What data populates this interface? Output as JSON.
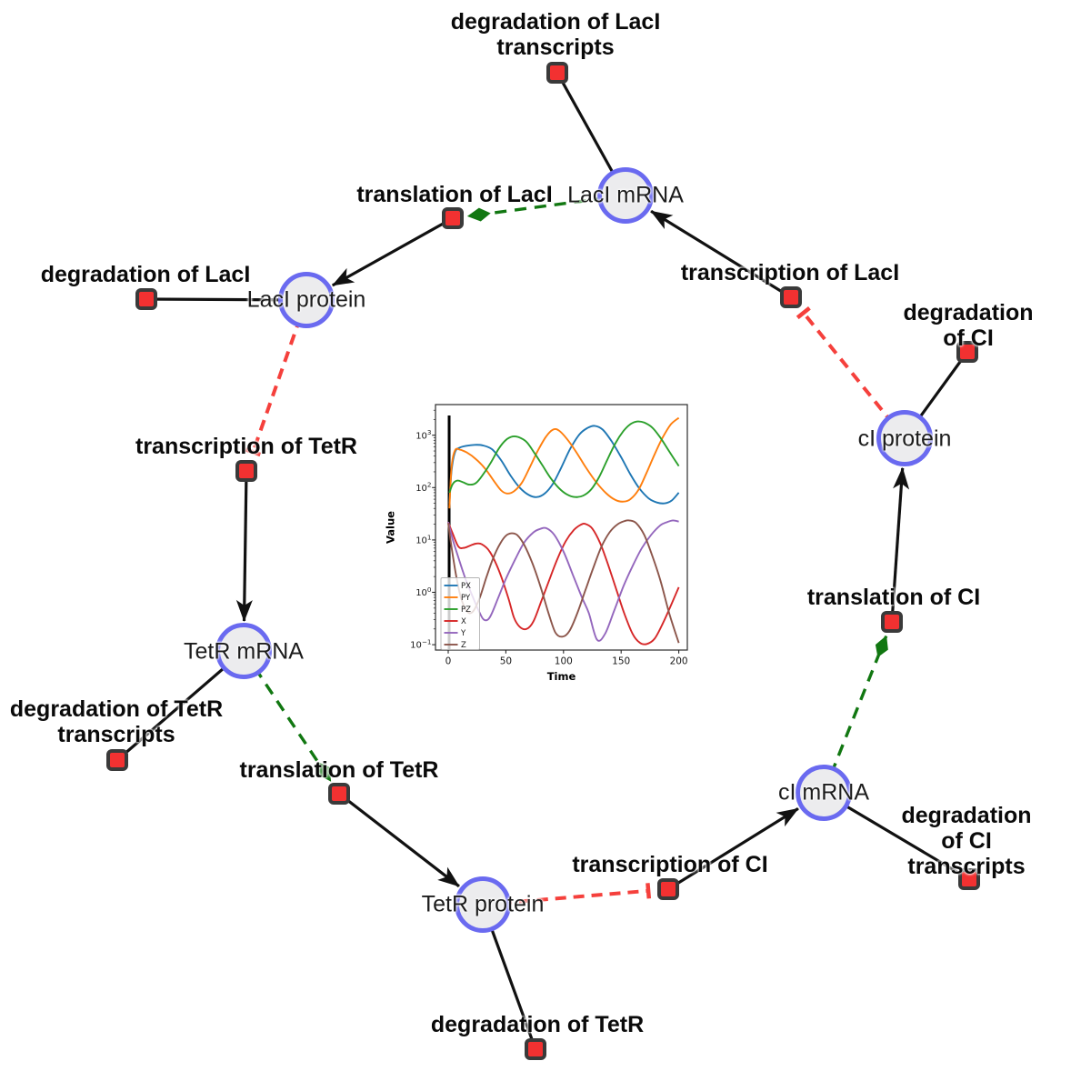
{
  "colors": {
    "species-fill": "#ececee",
    "species-border": "#6a6af0",
    "reaction-fill": "#f23131",
    "reaction-border": "#3a3a3a",
    "edge-black": "#111111",
    "edge-green": "#117711",
    "edge-red": "#f5403c"
  },
  "diagram": {
    "species": [
      {
        "id": "laci-mrna",
        "label": "LacI mRNA"
      },
      {
        "id": "laci-protein",
        "label": "LacI protein"
      },
      {
        "id": "ci-protein",
        "label": "cI protein"
      },
      {
        "id": "tetr-mrna",
        "label": "TetR mRNA"
      },
      {
        "id": "tetr-protein",
        "label": "TetR protein"
      },
      {
        "id": "ci-mrna",
        "label": "cI mRNA"
      }
    ],
    "reactions": [
      {
        "id": "degradation-laci-transcripts",
        "label": "degradation of LacI\ntranscripts"
      },
      {
        "id": "translation-laci",
        "label": "translation of LacI"
      },
      {
        "id": "transcription-laci",
        "label": "transcription of LacI"
      },
      {
        "id": "degradation-laci",
        "label": "degradation of LacI"
      },
      {
        "id": "degradation-ci",
        "label": "degradation of CI"
      },
      {
        "id": "transcription-tetr",
        "label": "transcription of TetR"
      },
      {
        "id": "degradation-tetr-transcripts",
        "label": "degradation of TetR\ntranscripts"
      },
      {
        "id": "translation-tetr",
        "label": "translation of TetR"
      },
      {
        "id": "transcription-ci",
        "label": "transcription of CI"
      },
      {
        "id": "degradation-tetr",
        "label": "degradation of TetR"
      },
      {
        "id": "translation-ci",
        "label": "translation of CI"
      },
      {
        "id": "degradation-ci-transcripts",
        "label": "degradation of CI\ntranscripts"
      }
    ],
    "edges": [
      {
        "from": "laci-mrna",
        "to": "degradation-laci-transcripts",
        "type": "reactant"
      },
      {
        "from": "laci-mrna",
        "to": "translation-laci",
        "type": "modifier"
      },
      {
        "from": "transcription-laci",
        "to": "laci-mrna",
        "type": "product"
      },
      {
        "from": "translation-laci",
        "to": "laci-protein",
        "type": "product"
      },
      {
        "from": "laci-protein",
        "to": "degradation-laci",
        "type": "reactant"
      },
      {
        "from": "laci-protein",
        "to": "transcription-tetr",
        "type": "inhibitor"
      },
      {
        "from": "transcription-tetr",
        "to": "tetr-mrna",
        "type": "product"
      },
      {
        "from": "tetr-mrna",
        "to": "degradation-tetr-transcripts",
        "type": "reactant"
      },
      {
        "from": "tetr-mrna",
        "to": "translation-tetr",
        "type": "modifier"
      },
      {
        "from": "translation-tetr",
        "to": "tetr-protein",
        "type": "product"
      },
      {
        "from": "tetr-protein",
        "to": "degradation-tetr",
        "type": "reactant"
      },
      {
        "from": "tetr-protein",
        "to": "transcription-ci",
        "type": "inhibitor"
      },
      {
        "from": "transcription-ci",
        "to": "ci-mrna",
        "type": "product"
      },
      {
        "from": "ci-mrna",
        "to": "degradation-ci-transcripts",
        "type": "reactant"
      },
      {
        "from": "ci-mrna",
        "to": "translation-ci",
        "type": "modifier"
      },
      {
        "from": "translation-ci",
        "to": "ci-protein",
        "type": "product"
      },
      {
        "from": "ci-protein",
        "to": "degradation-ci",
        "type": "reactant"
      },
      {
        "from": "ci-protein",
        "to": "transcription-laci",
        "type": "inhibitor"
      }
    ]
  },
  "chart_data": {
    "type": "line",
    "xlabel": "Time",
    "ylabel": "Value",
    "y_scale": "log",
    "x_ticks": [
      0,
      50,
      100,
      150,
      200
    ],
    "y_tick_exponents": [
      3,
      2,
      1,
      0,
      -1
    ],
    "x_range": [
      -11,
      207
    ],
    "y_log_range": [
      -1.13,
      3.58
    ],
    "marker_line_x": 0.8,
    "legend_position": "lower left",
    "legend": [
      "PX",
      "PY",
      "PZ",
      "X",
      "Y",
      "Z"
    ],
    "series": [
      {
        "name": "PX",
        "color": "#1f77b4",
        "points": [
          [
            1,
            50
          ],
          [
            3,
            220
          ],
          [
            6,
            480
          ],
          [
            10,
            580
          ],
          [
            16,
            630
          ],
          [
            23,
            655
          ],
          [
            30,
            640
          ],
          [
            38,
            540
          ],
          [
            46,
            330
          ],
          [
            54,
            170
          ],
          [
            62,
            100
          ],
          [
            70,
            72
          ],
          [
            77,
            66
          ],
          [
            84,
            78
          ],
          [
            91,
            120
          ],
          [
            98,
            240
          ],
          [
            106,
            560
          ],
          [
            114,
            1050
          ],
          [
            121,
            1380
          ],
          [
            127,
            1510
          ],
          [
            134,
            1280
          ],
          [
            142,
            750
          ],
          [
            150,
            380
          ],
          [
            158,
            180
          ],
          [
            166,
            95
          ],
          [
            174,
            62
          ],
          [
            181,
            52
          ],
          [
            188,
            50
          ],
          [
            194,
            57
          ],
          [
            200,
            80
          ]
        ]
      },
      {
        "name": "PY",
        "color": "#ff7f0e",
        "points": [
          [
            1,
            40
          ],
          [
            3,
            260
          ],
          [
            6,
            520
          ],
          [
            10,
            530
          ],
          [
            16,
            470
          ],
          [
            24,
            350
          ],
          [
            32,
            230
          ],
          [
            40,
            130
          ],
          [
            46,
            88
          ],
          [
            51,
            77
          ],
          [
            57,
            85
          ],
          [
            64,
            125
          ],
          [
            71,
            250
          ],
          [
            78,
            520
          ],
          [
            85,
            950
          ],
          [
            91,
            1280
          ],
          [
            96,
            1230
          ],
          [
            103,
            850
          ],
          [
            111,
            480
          ],
          [
            119,
            250
          ],
          [
            128,
            130
          ],
          [
            137,
            78
          ],
          [
            145,
            58
          ],
          [
            152,
            54
          ],
          [
            158,
            60
          ],
          [
            165,
            90
          ],
          [
            172,
            190
          ],
          [
            179,
            430
          ],
          [
            186,
            900
          ],
          [
            193,
            1600
          ],
          [
            200,
            2150
          ]
        ]
      },
      {
        "name": "PZ",
        "color": "#2ca02c",
        "points": [
          [
            1,
            80
          ],
          [
            4,
            118
          ],
          [
            8,
            136
          ],
          [
            13,
            126
          ],
          [
            18,
            114
          ],
          [
            24,
            122
          ],
          [
            30,
            175
          ],
          [
            37,
            300
          ],
          [
            44,
            560
          ],
          [
            50,
            810
          ],
          [
            56,
            945
          ],
          [
            61,
            920
          ],
          [
            68,
            740
          ],
          [
            75,
            450
          ],
          [
            82,
            260
          ],
          [
            89,
            150
          ],
          [
            96,
            98
          ],
          [
            103,
            74
          ],
          [
            110,
            66
          ],
          [
            117,
            70
          ],
          [
            124,
            92
          ],
          [
            131,
            160
          ],
          [
            138,
            340
          ],
          [
            145,
            700
          ],
          [
            152,
            1200
          ],
          [
            158,
            1620
          ],
          [
            164,
            1830
          ],
          [
            170,
            1740
          ],
          [
            177,
            1400
          ],
          [
            184,
            900
          ],
          [
            192,
            480
          ],
          [
            200,
            258
          ]
        ]
      },
      {
        "name": "X",
        "color": "#d62728",
        "points": [
          [
            0,
            22
          ],
          [
            4,
            13
          ],
          [
            9,
            7.4
          ],
          [
            14,
            7.1
          ],
          [
            19,
            7.8
          ],
          [
            24,
            8.5
          ],
          [
            29,
            8.3
          ],
          [
            36,
            6
          ],
          [
            44,
            2.6
          ],
          [
            52,
            0.8
          ],
          [
            57,
            0.33
          ],
          [
            62,
            0.22
          ],
          [
            68,
            0.2
          ],
          [
            74,
            0.28
          ],
          [
            81,
            0.7
          ],
          [
            88,
            1.8
          ],
          [
            95,
            4.5
          ],
          [
            102,
            9.5
          ],
          [
            109,
            15.5
          ],
          [
            115,
            19.5
          ],
          [
            119,
            20.2
          ],
          [
            125,
            16.5
          ],
          [
            132,
            8.5
          ],
          [
            139,
            3.2
          ],
          [
            146,
            1.1
          ],
          [
            153,
            0.38
          ],
          [
            160,
            0.16
          ],
          [
            166,
            0.11
          ],
          [
            172,
            0.103
          ],
          [
            179,
            0.13
          ],
          [
            186,
            0.25
          ],
          [
            193,
            0.55
          ],
          [
            200,
            1.25
          ]
        ]
      },
      {
        "name": "Y",
        "color": "#9467bd",
        "points": [
          [
            0,
            22
          ],
          [
            4,
            10
          ],
          [
            9,
            4.5
          ],
          [
            15,
            1.8
          ],
          [
            22,
            0.75
          ],
          [
            27,
            0.42
          ],
          [
            31,
            0.3
          ],
          [
            36,
            0.33
          ],
          [
            43,
            0.75
          ],
          [
            50,
            1.8
          ],
          [
            58,
            4.2
          ],
          [
            66,
            9
          ],
          [
            74,
            14
          ],
          [
            80,
            16.3
          ],
          [
            85,
            16.8
          ],
          [
            92,
            12.5
          ],
          [
            100,
            6
          ],
          [
            108,
            2.2
          ],
          [
            116,
            0.8
          ],
          [
            122,
            0.4
          ],
          [
            129,
            0.125
          ],
          [
            136,
            0.16
          ],
          [
            144,
            0.45
          ],
          [
            152,
            1.3
          ],
          [
            160,
            3.2
          ],
          [
            168,
            7
          ],
          [
            176,
            12.5
          ],
          [
            184,
            19
          ],
          [
            190,
            22
          ],
          [
            195,
            23.6
          ],
          [
            200,
            22.4
          ]
        ]
      },
      {
        "name": "Z",
        "color": "#8c564b",
        "points": [
          [
            0,
            21
          ],
          [
            3,
            7
          ],
          [
            7,
            2
          ],
          [
            11,
            0.8
          ],
          [
            16,
            0.44
          ],
          [
            21,
            0.42
          ],
          [
            27,
            0.75
          ],
          [
            33,
            1.9
          ],
          [
            39,
            4.5
          ],
          [
            45,
            8.5
          ],
          [
            50,
            12
          ],
          [
            55,
            13.4
          ],
          [
            60,
            12.3
          ],
          [
            66,
            8
          ],
          [
            73,
            3.6
          ],
          [
            80,
            1.3
          ],
          [
            87,
            0.4
          ],
          [
            93,
            0.17
          ],
          [
            99,
            0.142
          ],
          [
            105,
            0.18
          ],
          [
            112,
            0.4
          ],
          [
            119,
            1.1
          ],
          [
            126,
            3
          ],
          [
            133,
            7.5
          ],
          [
            140,
            14
          ],
          [
            147,
            20
          ],
          [
            153,
            23
          ],
          [
            157,
            23.6
          ],
          [
            163,
            21
          ],
          [
            170,
            12.5
          ],
          [
            177,
            5
          ],
          [
            184,
            1.7
          ],
          [
            191,
            0.45
          ],
          [
            196,
            0.2
          ],
          [
            200,
            0.108
          ]
        ]
      }
    ]
  }
}
